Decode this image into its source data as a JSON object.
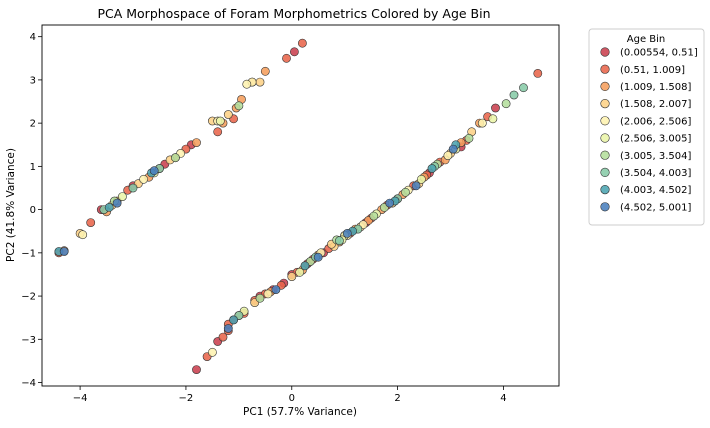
{
  "chart_data": {
    "type": "scatter",
    "title": "PCA Morphospace of Foram Morphometrics Colored by Age Bin",
    "xlabel": "PC1 (57.7% Variance)",
    "ylabel": "PC2 (41.8% Variance)",
    "xlim": [
      -4.72,
      5.05
    ],
    "ylim": [
      -4.08,
      4.27
    ],
    "xticks": [
      -4,
      -2,
      0,
      2,
      4
    ],
    "yticks": [
      -4,
      -3,
      -2,
      -1,
      0,
      1,
      2,
      3,
      4
    ],
    "grid": false,
    "legend": {
      "title": "Age Bin",
      "placement": "outside-top-right"
    },
    "series": [
      {
        "name": "(0.00554, 0.51]",
        "color": "#c9404e",
        "points": [
          [
            -1.8,
            -3.7
          ],
          [
            -1.4,
            -3.05
          ],
          [
            -1.1,
            -2.55
          ],
          [
            -0.6,
            -2.0
          ],
          [
            -0.35,
            -1.85
          ],
          [
            0.0,
            -1.5
          ],
          [
            0.3,
            -1.25
          ],
          [
            0.6,
            -1.0
          ],
          [
            1.0,
            -0.6
          ],
          [
            1.4,
            -0.3
          ],
          [
            2.0,
            0.25
          ],
          [
            2.6,
            0.85
          ],
          [
            3.2,
            1.45
          ],
          [
            3.85,
            2.35
          ],
          [
            0.05,
            3.65
          ],
          [
            -2.4,
            1.05
          ],
          [
            -1.9,
            1.5
          ],
          [
            -3.0,
            0.55
          ],
          [
            -3.6,
            0.0
          ],
          [
            -0.15,
            -1.7
          ]
        ]
      },
      {
        "name": "(0.51, 1.009]",
        "color": "#e8654b",
        "points": [
          [
            -1.6,
            -3.4
          ],
          [
            -1.3,
            -2.95
          ],
          [
            -1.2,
            -2.8
          ],
          [
            -0.9,
            -2.4
          ],
          [
            -0.7,
            -2.1
          ],
          [
            -0.5,
            -1.95
          ],
          [
            -0.2,
            -1.75
          ],
          [
            0.1,
            -1.45
          ],
          [
            0.4,
            -1.15
          ],
          [
            0.7,
            -0.9
          ],
          [
            1.1,
            -0.55
          ],
          [
            1.5,
            -0.2
          ],
          [
            1.8,
            0.1
          ],
          [
            2.3,
            0.55
          ],
          [
            2.8,
            1.1
          ],
          [
            3.3,
            1.6
          ],
          [
            3.7,
            2.15
          ],
          [
            4.65,
            3.15
          ],
          [
            0.2,
            3.85
          ],
          [
            -0.1,
            3.5
          ],
          [
            -1.1,
            2.1
          ],
          [
            -1.4,
            1.8
          ],
          [
            -2.0,
            1.4
          ],
          [
            -2.5,
            0.95
          ],
          [
            -3.1,
            0.45
          ],
          [
            -3.8,
            -0.3
          ],
          [
            -4.4,
            -1.0
          ],
          [
            -1.2,
            -2.65
          ],
          [
            0.25,
            -1.3
          ],
          [
            2.55,
            0.8
          ]
        ]
      },
      {
        "name": "(1.009, 1.508]",
        "color": "#f59e5c",
        "points": [
          [
            -1.0,
            -2.45
          ],
          [
            -0.4,
            -1.9
          ],
          [
            0.2,
            -1.4
          ],
          [
            0.9,
            -0.75
          ],
          [
            1.2,
            -0.45
          ],
          [
            1.7,
            0.0
          ],
          [
            2.1,
            0.35
          ],
          [
            2.5,
            0.75
          ],
          [
            2.9,
            1.15
          ],
          [
            3.2,
            1.55
          ],
          [
            3.55,
            2.0
          ],
          [
            -0.5,
            3.2
          ],
          [
            -0.75,
            2.95
          ],
          [
            -0.95,
            2.55
          ],
          [
            -1.3,
            2.0
          ],
          [
            -1.8,
            1.55
          ],
          [
            -2.2,
            1.2
          ],
          [
            -2.7,
            0.75
          ],
          [
            -3.3,
            0.2
          ],
          [
            -3.5,
            -0.05
          ],
          [
            -4.3,
            -0.95
          ],
          [
            -1.05,
            2.35
          ],
          [
            0.5,
            -1.05
          ],
          [
            1.45,
            -0.25
          ]
        ]
      },
      {
        "name": "(1.508, 2.007]",
        "color": "#fdd186",
        "points": [
          [
            -0.7,
            -2.15
          ],
          [
            0.0,
            -1.55
          ],
          [
            0.8,
            -0.85
          ],
          [
            1.3,
            -0.4
          ],
          [
            1.9,
            0.15
          ],
          [
            2.4,
            0.6
          ],
          [
            3.0,
            1.3
          ],
          [
            3.4,
            1.8
          ],
          [
            -0.6,
            2.95
          ],
          [
            -1.5,
            2.05
          ],
          [
            -2.3,
            1.15
          ],
          [
            -2.9,
            0.6
          ],
          [
            -3.4,
            0.1
          ],
          [
            -4.0,
            -0.55
          ],
          [
            -1.2,
            2.2
          ],
          [
            0.75,
            -0.8
          ]
        ]
      },
      {
        "name": "(2.006, 2.506]",
        "color": "#fef3b0",
        "points": [
          [
            -1.5,
            -3.3
          ],
          [
            -0.45,
            -1.95
          ],
          [
            0.55,
            -1.0
          ],
          [
            1.35,
            -0.35
          ],
          [
            2.2,
            0.45
          ],
          [
            2.95,
            1.25
          ],
          [
            3.6,
            2.0
          ],
          [
            -0.75,
            2.95
          ],
          [
            -1.4,
            2.05
          ],
          [
            -2.1,
            1.3
          ],
          [
            -2.8,
            0.7
          ],
          [
            -3.95,
            -0.58
          ],
          [
            -0.85,
            2.9
          ],
          [
            1.05,
            -0.6
          ]
        ]
      },
      {
        "name": "(2.506, 3.005]",
        "color": "#eaf5a8",
        "points": [
          [
            -0.9,
            -2.35
          ],
          [
            0.15,
            -1.45
          ],
          [
            1.0,
            -0.6
          ],
          [
            1.6,
            -0.1
          ],
          [
            2.45,
            0.7
          ],
          [
            3.1,
            1.4
          ],
          [
            3.8,
            2.1
          ],
          [
            -1.35,
            2.05
          ],
          [
            -2.6,
            0.85
          ],
          [
            -3.2,
            0.3
          ],
          [
            0.95,
            -0.7
          ]
        ]
      },
      {
        "name": "(3.005, 3.504]",
        "color": "#b4de9c",
        "points": [
          [
            -0.6,
            -2.05
          ],
          [
            0.35,
            -1.2
          ],
          [
            0.85,
            -0.7
          ],
          [
            1.55,
            -0.15
          ],
          [
            2.15,
            0.4
          ],
          [
            2.75,
            1.05
          ],
          [
            3.35,
            1.65
          ],
          [
            4.05,
            2.45
          ],
          [
            -2.2,
            1.2
          ],
          [
            -3.35,
            0.2
          ],
          [
            -1.0,
            2.4
          ],
          [
            1.75,
            0.05
          ]
        ]
      },
      {
        "name": "(3.504, 4.003]",
        "color": "#88cba7",
        "points": [
          [
            -1.0,
            -2.45
          ],
          [
            0.45,
            -1.1
          ],
          [
            1.25,
            -0.45
          ],
          [
            2.0,
            0.25
          ],
          [
            2.7,
            1.0
          ],
          [
            4.2,
            2.65
          ],
          [
            4.38,
            2.82
          ],
          [
            -3.0,
            0.5
          ],
          [
            -3.55,
            0.0
          ],
          [
            -2.5,
            0.95
          ],
          [
            0.9,
            -0.72
          ]
        ]
      },
      {
        "name": "(4.003, 4.502]",
        "color": "#4ba4b1",
        "points": [
          [
            -1.1,
            -2.55
          ],
          [
            0.25,
            -1.3
          ],
          [
            1.15,
            -0.5
          ],
          [
            1.95,
            0.2
          ],
          [
            2.65,
            0.95
          ],
          [
            3.1,
            1.5
          ],
          [
            -3.45,
            0.05
          ],
          [
            -2.65,
            0.85
          ],
          [
            -4.4,
            -0.97
          ]
        ]
      },
      {
        "name": "(4.502, 5.001]",
        "color": "#4a7fbd",
        "points": [
          [
            -1.2,
            -2.75
          ],
          [
            -0.3,
            -1.85
          ],
          [
            0.5,
            -1.1
          ],
          [
            1.05,
            -0.55
          ],
          [
            1.85,
            0.15
          ],
          [
            2.35,
            0.55
          ],
          [
            3.05,
            1.4
          ],
          [
            -2.6,
            0.9
          ],
          [
            -3.3,
            0.15
          ],
          [
            -4.3,
            -0.97
          ]
        ]
      }
    ]
  }
}
